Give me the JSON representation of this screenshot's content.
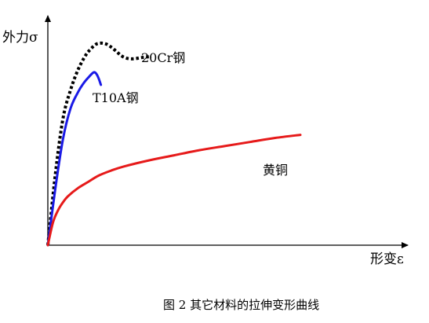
{
  "chart_data": {
    "type": "line",
    "title": "图 2  其它材料的拉伸变形曲线",
    "xlabel": "形变ε",
    "ylabel": "外力σ",
    "xlim": [
      0,
      100
    ],
    "ylim": [
      0,
      100
    ],
    "grid": false,
    "series": [
      {
        "name": "20Cr钢",
        "color": "#000000",
        "dash": "dotted",
        "x": [
          0,
          3,
          6,
          9,
          12,
          15,
          17,
          19,
          21,
          23,
          25,
          27,
          29,
          31,
          33,
          35,
          37,
          39,
          41
        ],
        "y": [
          0,
          35,
          62,
          76,
          86,
          93,
          96,
          98.3,
          98.9,
          98.5,
          97,
          95,
          92.8,
          91.6,
          91.2,
          91.4,
          91.8,
          92.1,
          92.3
        ]
      },
      {
        "name": "T10A钢",
        "color": "#1a1ae6",
        "dash": "solid",
        "x": [
          0,
          3,
          6,
          9,
          12,
          14,
          16,
          18,
          19,
          20,
          21
        ],
        "y": [
          0,
          28,
          52,
          67,
          75,
          79,
          82,
          84.5,
          84.2,
          82,
          78.5
        ]
      },
      {
        "name": "黄铜",
        "color": "#e61a1a",
        "dash": "solid",
        "x": [
          0,
          2,
          4,
          6,
          8,
          12,
          16,
          20,
          25,
          30,
          40,
          50,
          60,
          70,
          80,
          90,
          100
        ],
        "y": [
          0,
          11,
          17,
          21,
          24,
          28,
          31,
          34,
          36.5,
          38.5,
          41.5,
          44,
          46.5,
          48.5,
          50.5,
          52.5,
          54
        ]
      }
    ]
  }
}
